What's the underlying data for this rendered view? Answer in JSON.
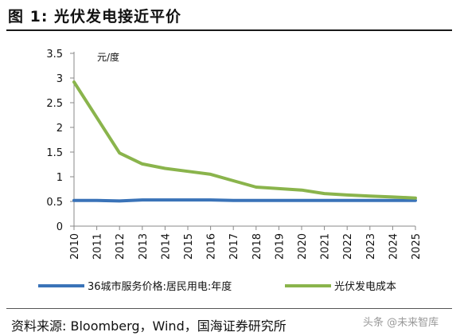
{
  "header": {
    "title": "图 1:  光伏发电接近平价"
  },
  "footer": {
    "source": "资料来源:  Bloomberg，Wind，国海证券研究所",
    "watermark": "头条 @未来智库"
  },
  "colors": {
    "series_blue": "#3a73b8",
    "series_green": "#8ab44c",
    "axis": "#888888"
  },
  "chart_data": {
    "type": "line",
    "ylabel": "元/度",
    "ylim": [
      0,
      3.5
    ],
    "yticks": [
      "0",
      "0.5",
      "1",
      "1.5",
      "2",
      "2.5",
      "3",
      "3.5"
    ],
    "x": [
      "2010",
      "2011",
      "2012",
      "2013",
      "2014",
      "2015",
      "2016",
      "2017",
      "2018",
      "2019",
      "2020",
      "2021",
      "2022",
      "2023",
      "2024",
      "2025"
    ],
    "series": [
      {
        "name": "36城市服务价格:居民用电:年度",
        "values": [
          0.52,
          0.52,
          0.51,
          0.53,
          0.53,
          0.53,
          0.53,
          0.52,
          0.52,
          0.52,
          0.52,
          0.52,
          0.52,
          0.52,
          0.52,
          0.52
        ]
      },
      {
        "name": "光伏发电成本",
        "values": [
          2.92,
          2.2,
          1.48,
          1.26,
          1.17,
          1.11,
          1.05,
          0.92,
          0.79,
          0.76,
          0.73,
          0.66,
          0.63,
          0.61,
          0.59,
          0.57
        ]
      }
    ],
    "grid": false,
    "legend": "bottom"
  }
}
